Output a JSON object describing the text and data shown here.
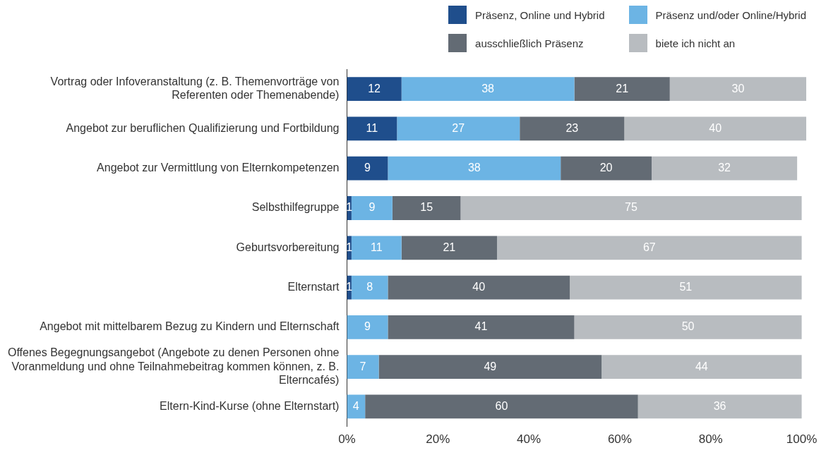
{
  "chart_data": {
    "type": "bar",
    "orientation": "horizontal",
    "stacked": true,
    "data_labels": true,
    "grid": false,
    "legend": "top right",
    "categories": [
      "Vortrag oder Infoveranstaltung (z. B. Themenvorträge von Referenten oder Themenabende)",
      "Angebot zur beruflichen Qualifizierung und Fortbildung",
      "Angebot zur Vermittlung von Elternkompetenzen",
      "Selbsthilfegruppe",
      "Geburtsvorbereitung",
      "Elternstart",
      "Angebot mit mittelbarem Bezug zu Kindern und Elternschaft",
      "Offenes Begegnungsangebot (Angebote zu denen Personen ohne Voranmeldung und ohne Teilnahmebeitrag kommen können, z. B. Elterncafés)",
      "Eltern-Kind-Kurse (ohne Elternstart)"
    ],
    "xlim": [
      0,
      101
    ],
    "xticks": [
      {
        "value": 0,
        "label": "0%"
      },
      {
        "value": 20,
        "label": "20%"
      },
      {
        "value": 40,
        "label": "40%"
      },
      {
        "value": 60,
        "label": "60%"
      },
      {
        "value": 80,
        "label": "80%"
      },
      {
        "value": 100,
        "label": "100%"
      }
    ],
    "series": [
      {
        "name": "Präsenz, Online und Hybrid",
        "color": "#1f4e8c",
        "values": [
          12,
          11,
          9,
          1,
          1,
          1,
          null,
          null,
          null
        ]
      },
      {
        "name": "Präsenz und/oder Online/Hybrid",
        "color": "#6cb4e4",
        "values": [
          38,
          27,
          38,
          9,
          11,
          8,
          9,
          7,
          4
        ]
      },
      {
        "name": "ausschließlich Präsenz",
        "color": "#636b74",
        "values": [
          21,
          23,
          20,
          15,
          21,
          40,
          41,
          49,
          60
        ]
      },
      {
        "name": "biete ich nicht an",
        "color": "#b8bcc0",
        "values": [
          30,
          40,
          32,
          75,
          67,
          51,
          50,
          44,
          36
        ]
      }
    ]
  }
}
